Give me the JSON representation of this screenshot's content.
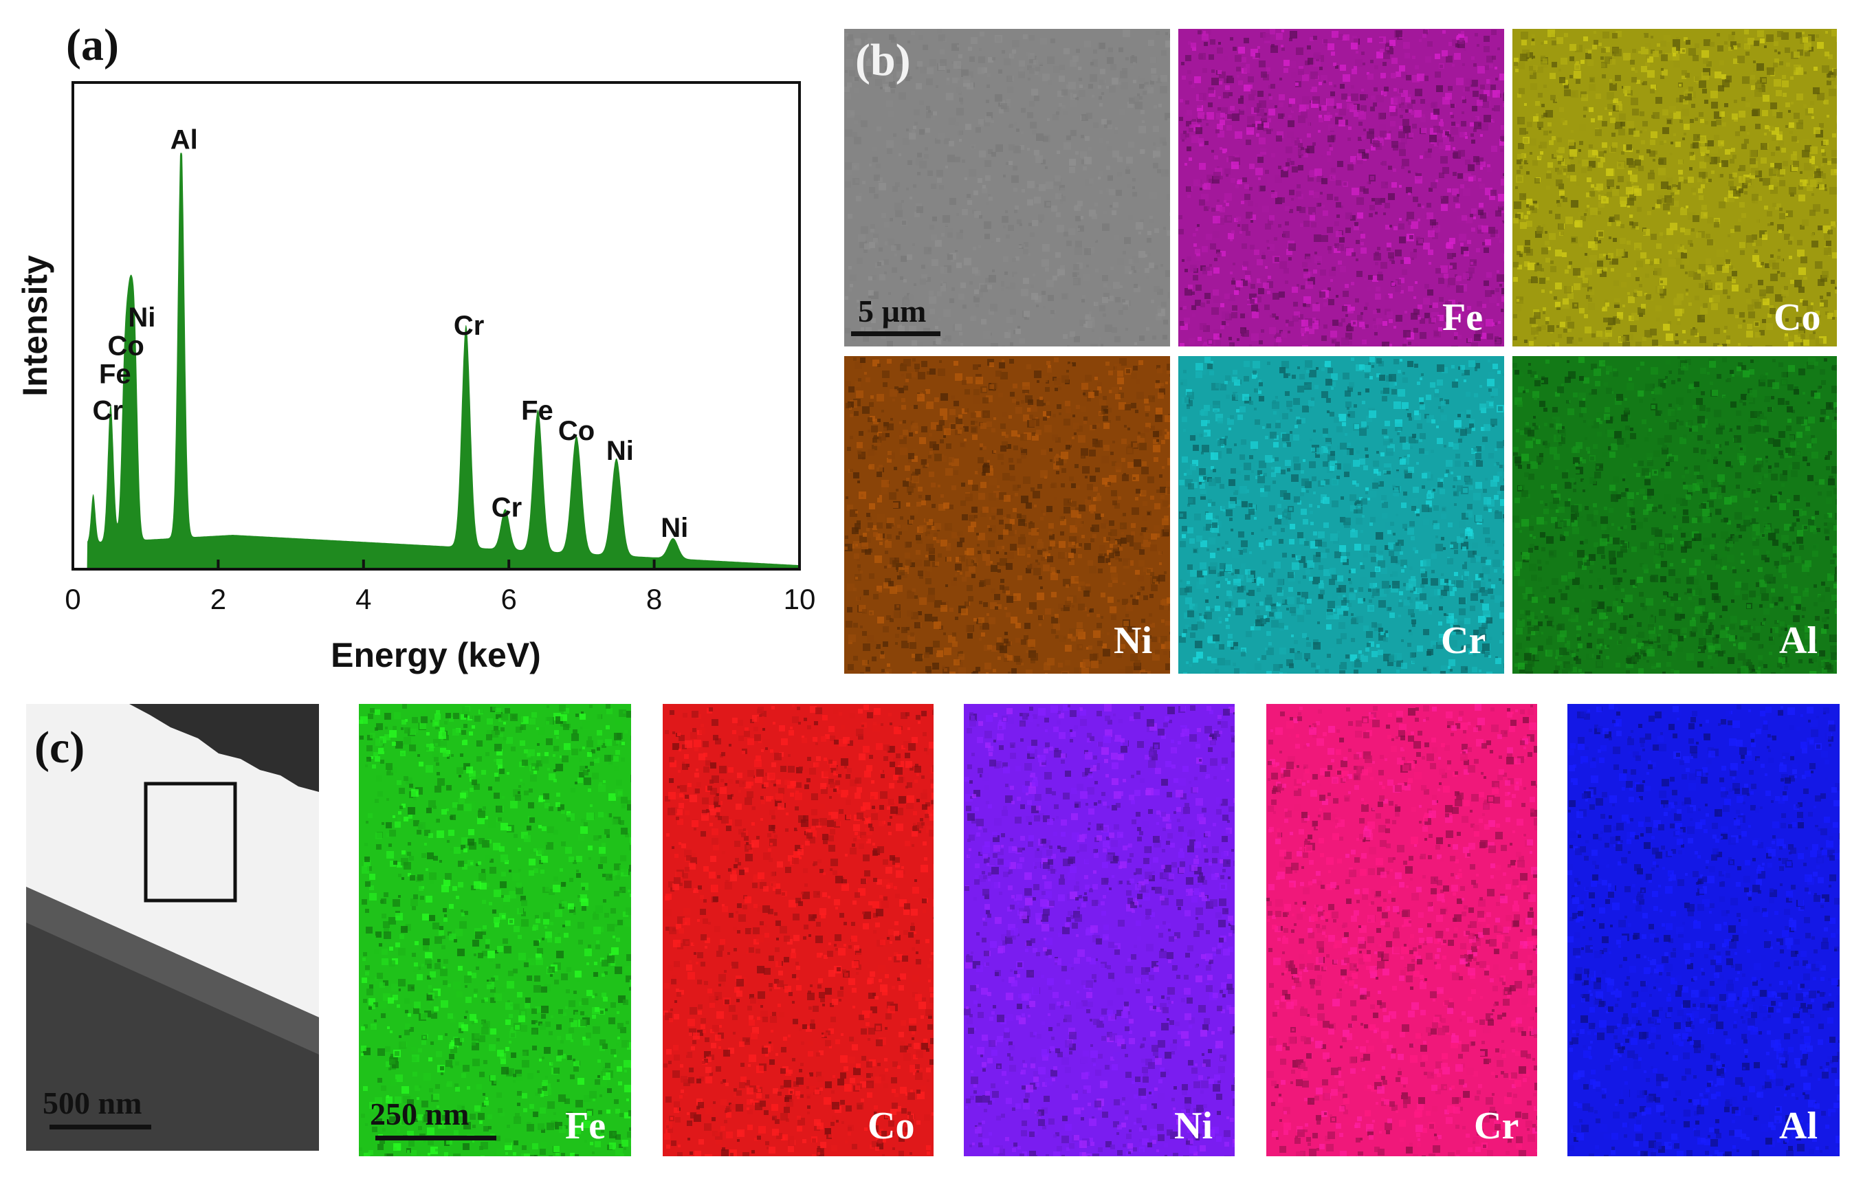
{
  "panels": {
    "a": {
      "letter": "(a)"
    },
    "b": {
      "letter": "(b)",
      "scale": "5 µm"
    },
    "c": {
      "letter": "(c)",
      "scale_overview": "500 nm",
      "scale_maps": "250 nm"
    }
  },
  "map_b": [
    {
      "label": "",
      "color": "#858585",
      "kind": "sem"
    },
    {
      "label": "Fe",
      "color": "#a3189b"
    },
    {
      "label": "Co",
      "color": "#9e9a10"
    },
    {
      "label": "Ni",
      "color": "#8a4408"
    },
    {
      "label": "Cr",
      "color": "#15a3a6"
    },
    {
      "label": "Al",
      "color": "#137a17"
    }
  ],
  "map_c": [
    {
      "label": "Fe",
      "color": "#1fc21a"
    },
    {
      "label": "Co",
      "color": "#e0181a"
    },
    {
      "label": "Ni",
      "color": "#7a1df0"
    },
    {
      "label": "Cr",
      "color": "#f0187a"
    },
    {
      "label": "Al",
      "color": "#1418e6"
    }
  ],
  "chart_data": {
    "type": "area",
    "title": "",
    "xlabel": "Energy (keV)",
    "ylabel": "Intensity",
    "xlim": [
      0,
      10
    ],
    "ylim": [
      0,
      100
    ],
    "xticks": [
      "0",
      "2",
      "4",
      "6",
      "8",
      "10"
    ],
    "grid": false,
    "fill_color": "#1f8a1f",
    "background": {
      "min_x": 0.2,
      "level_start": 6.5,
      "level_mid": 8.5,
      "level_end": 1
    },
    "peaks": [
      {
        "energy": 0.28,
        "height": 12,
        "width": 0.03
      },
      {
        "energy": 0.52,
        "height": 34,
        "width": 0.04
      },
      {
        "energy": 0.71,
        "height": 40,
        "width": 0.04
      },
      {
        "energy": 0.78,
        "height": 46,
        "width": 0.04
      },
      {
        "energy": 0.85,
        "height": 48,
        "width": 0.04
      },
      {
        "energy": 1.49,
        "height": 100,
        "width": 0.045
      },
      {
        "energy": 5.41,
        "height": 55,
        "width": 0.06
      },
      {
        "energy": 5.95,
        "height": 10,
        "width": 0.06
      },
      {
        "energy": 6.4,
        "height": 35,
        "width": 0.065
      },
      {
        "energy": 6.93,
        "height": 29,
        "width": 0.07
      },
      {
        "energy": 7.48,
        "height": 24,
        "width": 0.07
      },
      {
        "energy": 8.26,
        "height": 5,
        "width": 0.07
      }
    ],
    "annotations": [
      {
        "text": "Al",
        "x": 1.53,
        "y": 104
      },
      {
        "text": "Ni",
        "x": 0.95,
        "y": 60
      },
      {
        "text": "Co",
        "x": 0.73,
        "y": 53
      },
      {
        "text": "Fe",
        "x": 0.58,
        "y": 46
      },
      {
        "text": "Cr",
        "x": 0.48,
        "y": 37
      },
      {
        "text": "Cr",
        "x": 5.45,
        "y": 58
      },
      {
        "text": "Cr",
        "x": 5.97,
        "y": 13
      },
      {
        "text": "Fe",
        "x": 6.39,
        "y": 37
      },
      {
        "text": "Co",
        "x": 6.93,
        "y": 32
      },
      {
        "text": "Ni",
        "x": 7.53,
        "y": 27
      },
      {
        "text": "Ni",
        "x": 8.28,
        "y": 8
      }
    ]
  }
}
